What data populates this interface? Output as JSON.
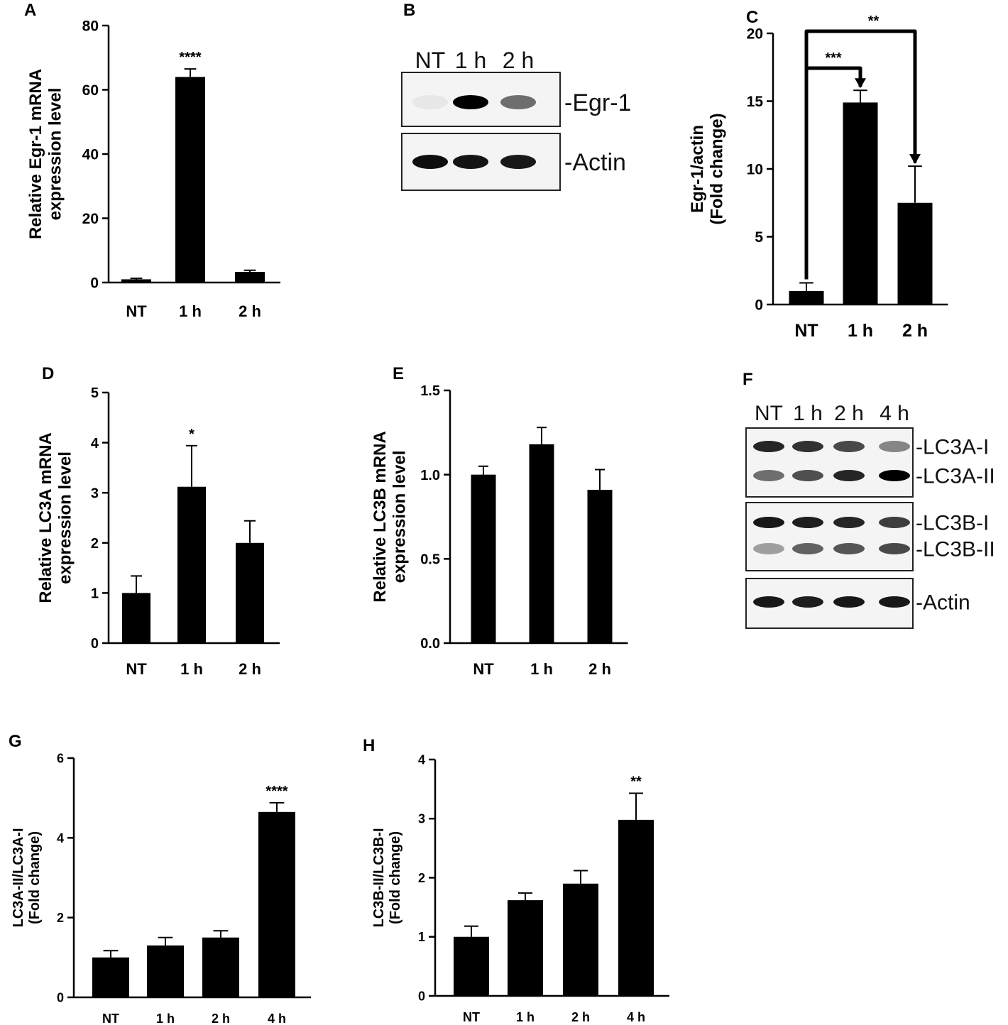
{
  "chart_data": [
    {
      "panel": "A",
      "type": "bar",
      "categories": [
        "NT",
        "1 h",
        "2 h"
      ],
      "values": [
        1,
        64,
        3.3
      ],
      "errors": [
        0.3,
        2.5,
        0.5
      ],
      "ylabel": [
        "Relative Egr-1 mRNA",
        "expression level"
      ],
      "ylim": [
        0,
        80
      ],
      "yticks": [
        0,
        20,
        40,
        60,
        80
      ],
      "ytick_labels": [
        "0",
        "20",
        "40",
        "60",
        "80"
      ],
      "annotations": [
        {
          "category": "1 h",
          "text": "****"
        }
      ]
    },
    {
      "panel": "C",
      "type": "bar",
      "categories": [
        "NT",
        "1 h",
        "2 h"
      ],
      "values": [
        1,
        14.9,
        7.5
      ],
      "errors": [
        0.6,
        0.9,
        2.7
      ],
      "ylabel": [
        "Egr-1/actin",
        "(Fold change)"
      ],
      "ylim": [
        0,
        20
      ],
      "yticks": [
        0,
        5,
        10,
        15,
        20
      ],
      "ytick_labels": [
        "0",
        "5",
        "10",
        "15",
        "20"
      ],
      "brackets": [
        {
          "from": "NT",
          "to": "1 h",
          "text": "***"
        },
        {
          "from": "NT",
          "to": "2 h",
          "text": "**"
        }
      ]
    },
    {
      "panel": "D",
      "type": "bar",
      "categories": [
        "NT",
        "1 h",
        "2 h"
      ],
      "values": [
        1,
        3.12,
        2
      ],
      "errors": [
        0.34,
        0.82,
        0.44
      ],
      "ylabel": [
        "Relative LC3A mRNA",
        "expression level"
      ],
      "ylim": [
        0,
        5
      ],
      "yticks": [
        0,
        1,
        2,
        3,
        4,
        5
      ],
      "ytick_labels": [
        "0",
        "1",
        "2",
        "3",
        "4",
        "5"
      ],
      "annotations": [
        {
          "category": "1 h",
          "text": "*"
        }
      ]
    },
    {
      "panel": "E",
      "type": "bar",
      "categories": [
        "NT",
        "1 h",
        "2 h"
      ],
      "values": [
        1,
        1.18,
        0.91
      ],
      "errors": [
        0.05,
        0.1,
        0.12
      ],
      "ylabel": [
        "Relative LC3B mRNA",
        "expression level"
      ],
      "ylim": [
        0,
        1.5
      ],
      "yticks": [
        0,
        0.5,
        1,
        1.5
      ],
      "ytick_labels": [
        "0.0",
        "0.5",
        "1.0",
        "1.5"
      ],
      "annotations": []
    },
    {
      "panel": "G",
      "type": "bar",
      "categories": [
        "NT",
        "1 h",
        "2 h",
        "4 h"
      ],
      "values": [
        1,
        1.3,
        1.5,
        4.65
      ],
      "errors": [
        0.17,
        0.2,
        0.17,
        0.23
      ],
      "ylabel": [
        "LC3A-II/LC3A-I",
        "(Fold change)"
      ],
      "ylim": [
        0,
        6
      ],
      "yticks": [
        0,
        2,
        4,
        6
      ],
      "ytick_labels": [
        "0",
        "2",
        "4",
        "6"
      ],
      "annotations": [
        {
          "category": "4 h",
          "text": "****"
        }
      ]
    },
    {
      "panel": "H",
      "type": "bar",
      "categories": [
        "NT",
        "1 h",
        "2 h",
        "4 h"
      ],
      "values": [
        1,
        1.62,
        1.9,
        2.98
      ],
      "errors": [
        0.18,
        0.12,
        0.22,
        0.45
      ],
      "ylabel": [
        "LC3B-II/LC3B-I",
        "(Fold change)"
      ],
      "ylim": [
        0,
        4
      ],
      "yticks": [
        0,
        1,
        2,
        3,
        4
      ],
      "ytick_labels": [
        "0",
        "1",
        "2",
        "3",
        "4"
      ],
      "annotations": [
        {
          "category": "4 h",
          "text": "**"
        }
      ]
    }
  ],
  "blots": [
    {
      "panel": "B",
      "lanes": [
        "NT",
        "1 h",
        "2 h"
      ],
      "boxes": [
        {
          "bands": [
            {
              "label": "-Egr-1",
              "intensity": [
                0.05,
                1.0,
                0.55
              ]
            }
          ]
        },
        {
          "bands": [
            {
              "label": "-Actin",
              "intensity": [
                0.95,
                0.92,
                0.9
              ]
            }
          ]
        }
      ]
    },
    {
      "panel": "F",
      "lanes": [
        "NT",
        "1 h",
        "2 h",
        "4 h"
      ],
      "boxes": [
        {
          "bands": [
            {
              "label": "-LC3A-I",
              "intensity": [
                0.85,
                0.8,
                0.7,
                0.45
              ]
            },
            {
              "label": "-LC3A-II",
              "intensity": [
                0.55,
                0.68,
                0.85,
                1.0
              ]
            }
          ]
        },
        {
          "bands": [
            {
              "label": "-LC3B-I",
              "intensity": [
                0.9,
                0.88,
                0.85,
                0.75
              ]
            },
            {
              "label": "-LC3B-II",
              "intensity": [
                0.35,
                0.6,
                0.65,
                0.7
              ]
            }
          ]
        },
        {
          "bands": [
            {
              "label": "-Actin",
              "intensity": [
                0.9,
                0.88,
                0.9,
                0.9
              ]
            }
          ]
        }
      ]
    }
  ],
  "panel_labels": [
    "A",
    "B",
    "C",
    "D",
    "E",
    "F",
    "G",
    "H"
  ]
}
